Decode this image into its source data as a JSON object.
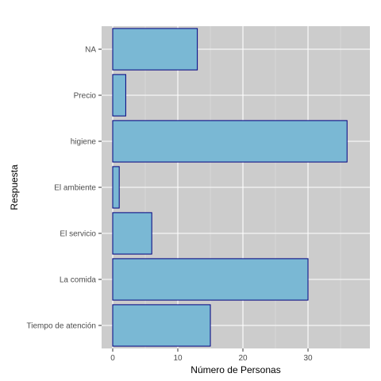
{
  "chart_data": {
    "type": "bar",
    "orientation": "horizontal",
    "categories": [
      "Tiempo de atención",
      "La comida",
      "El servicio",
      "El ambiente",
      "higiene",
      "Precio",
      "NA"
    ],
    "values": [
      15,
      30,
      6,
      1,
      36,
      2,
      13
    ],
    "xlabel": "Número de Personas",
    "ylabel": "Respuesta",
    "xlim": [
      0,
      37.8
    ],
    "xticks": [
      0,
      10,
      20,
      30
    ],
    "grid": true,
    "colors": {
      "bar_fill": "#7ab8d4",
      "bar_stroke": "#000080",
      "panel_bg": "#cccccc",
      "grid_major": "#ffffff",
      "grid_minor": "#dedede"
    }
  }
}
